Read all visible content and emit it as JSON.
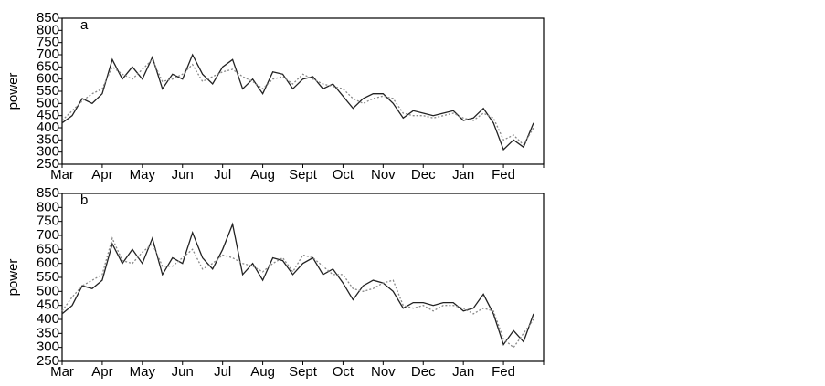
{
  "chart_data": [
    {
      "type": "line",
      "title": "a",
      "y_label": "power",
      "categories": [
        "Mar",
        null,
        null,
        null,
        "Apr",
        null,
        null,
        null,
        "May",
        null,
        null,
        null,
        "Jun",
        null,
        null,
        null,
        "Jul",
        null,
        null,
        null,
        "Aug",
        null,
        null,
        null,
        "Sept",
        null,
        null,
        null,
        "Oct",
        null,
        null,
        null,
        "Nov",
        null,
        null,
        null,
        "Dec",
        null,
        null,
        null,
        "Jan",
        null,
        null,
        null,
        "Fed",
        null,
        null,
        null
      ],
      "series": [
        {
          "color": "#222222",
          "dash": "none",
          "values": [
            420,
            450,
            520,
            500,
            540,
            680,
            600,
            650,
            600,
            690,
            560,
            620,
            600,
            700,
            620,
            580,
            650,
            680,
            560,
            600,
            540,
            630,
            620,
            560,
            600,
            610,
            560,
            580,
            530,
            480,
            520,
            540,
            540,
            500,
            440,
            470,
            460,
            450,
            460,
            470,
            430,
            440,
            480,
            420,
            310,
            350,
            320,
            420
          ]
        },
        {
          "color": "#888888",
          "dash": "2,2",
          "values": [
            430,
            470,
            510,
            540,
            560,
            650,
            620,
            600,
            640,
            680,
            590,
            600,
            620,
            660,
            590,
            610,
            630,
            640,
            610,
            590,
            560,
            600,
            610,
            580,
            620,
            600,
            580,
            570,
            560,
            520,
            500,
            520,
            530,
            520,
            460,
            450,
            450,
            440,
            450,
            460,
            440,
            430,
            460,
            440,
            350,
            370,
            330,
            400
          ]
        }
      ],
      "ylim": [
        250,
        850
      ],
      "yticks": [
        250,
        300,
        350,
        400,
        450,
        500,
        550,
        600,
        650,
        700,
        750,
        800,
        850
      ]
    },
    {
      "type": "line",
      "title": "b",
      "y_label": "power",
      "categories": [
        "Mar",
        null,
        null,
        null,
        "Apr",
        null,
        null,
        null,
        "May",
        null,
        null,
        null,
        "Jun",
        null,
        null,
        null,
        "Jul",
        null,
        null,
        null,
        "Aug",
        null,
        null,
        null,
        "Sept",
        null,
        null,
        null,
        "Oct",
        null,
        null,
        null,
        "Nov",
        null,
        null,
        null,
        "Dec",
        null,
        null,
        null,
        "Jan",
        null,
        null,
        null,
        "Fed",
        null,
        null,
        null
      ],
      "series": [
        {
          "color": "#222222",
          "dash": "none",
          "values": [
            420,
            450,
            520,
            510,
            540,
            670,
            600,
            650,
            600,
            690,
            560,
            620,
            600,
            710,
            620,
            580,
            650,
            740,
            560,
            600,
            540,
            620,
            610,
            560,
            600,
            620,
            560,
            580,
            530,
            470,
            520,
            540,
            530,
            500,
            440,
            460,
            460,
            450,
            460,
            460,
            430,
            440,
            490,
            420,
            310,
            360,
            320,
            420
          ]
        },
        {
          "color": "#888888",
          "dash": "2,2",
          "values": [
            430,
            480,
            520,
            540,
            560,
            690,
            610,
            600,
            640,
            670,
            590,
            590,
            620,
            650,
            580,
            600,
            630,
            620,
            600,
            590,
            570,
            600,
            620,
            570,
            630,
            620,
            590,
            560,
            560,
            510,
            500,
            510,
            530,
            540,
            450,
            440,
            450,
            430,
            450,
            450,
            440,
            420,
            440,
            430,
            330,
            300,
            350,
            400
          ]
        }
      ],
      "ylim": [
        250,
        850
      ],
      "yticks": [
        250,
        300,
        350,
        400,
        450,
        500,
        550,
        600,
        650,
        700,
        750,
        800,
        850
      ]
    }
  ]
}
